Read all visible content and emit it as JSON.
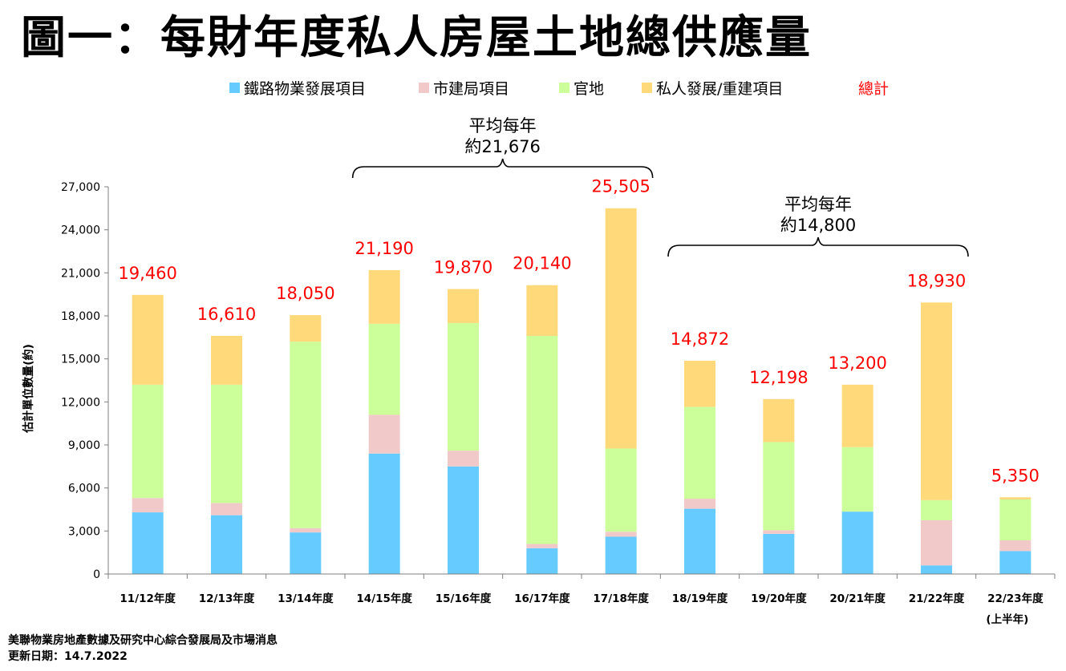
{
  "title": "圖一：每財年度私人房屋土地總供應量",
  "chart_data": {
    "type": "bar",
    "stacked": true,
    "title": "圖一：每財年度私人房屋土地總供應量",
    "ylabel": "估計單位數量(約)",
    "xlabel": "",
    "ylim": [
      0,
      27000
    ],
    "yticks": [
      0,
      3000,
      6000,
      9000,
      12000,
      15000,
      18000,
      21000,
      24000,
      27000
    ],
    "ytick_labels": [
      "0",
      "3,000",
      "6,000",
      "9,000",
      "12,000",
      "15,000",
      "18,000",
      "21,000",
      "24,000",
      "27,000"
    ],
    "categories": [
      "11/12年度",
      "12/13年度",
      "13/14年度",
      "14/15年度",
      "15/16年度",
      "16/17年度",
      "17/18年度",
      "18/19年度",
      "19/20年度",
      "20/21年度",
      "21/22年度",
      "22/23年度"
    ],
    "category_notes": [
      "",
      "",
      "",
      "",
      "",
      "",
      "",
      "",
      "",
      "",
      "",
      "(上半年)"
    ],
    "series": [
      {
        "name": "鐵路物業發展項目",
        "color": "#66ccff",
        "values": [
          4300,
          4100,
          2900,
          8400,
          7500,
          1800,
          2600,
          4550,
          2800,
          4350,
          600,
          1600
        ]
      },
      {
        "name": "市建局項目",
        "color": "#f2c9c9",
        "values": [
          1000,
          850,
          300,
          2700,
          1100,
          300,
          350,
          700,
          250,
          0,
          3150,
          750
        ]
      },
      {
        "name": "官地",
        "color": "#ccff99",
        "values": [
          7900,
          8250,
          13000,
          6350,
          8900,
          14500,
          5800,
          6400,
          6150,
          4500,
          1400,
          2850
        ]
      },
      {
        "name": "私人發展/重建項目",
        "color": "#ffd97a",
        "values": [
          6260,
          3410,
          1850,
          3740,
          2370,
          3540,
          16755,
          3222,
          2998,
          4350,
          13780,
          150
        ]
      }
    ],
    "totals": [
      19460,
      16610,
      18050,
      21190,
      19870,
      20140,
      25505,
      14872,
      12198,
      13200,
      18930,
      5350
    ],
    "total_labels": [
      "19,460",
      "16,610",
      "18,050",
      "21,190",
      "19,870",
      "20,140",
      "25,505",
      "14,872",
      "12,198",
      "13,200",
      "18,930",
      "5,350"
    ],
    "total_legend": {
      "name": "總計",
      "color": "#ff0000"
    },
    "annotations": [
      {
        "line1": "平均每年",
        "line2": "約21,676",
        "from_index": 3,
        "to_index": 6
      },
      {
        "line1": "平均每年",
        "line2": "約14,800",
        "from_index": 7,
        "to_index": 10
      }
    ],
    "legend_position": "top",
    "grid": false
  },
  "footer": {
    "source": "美聯物業房地產數據及研究中心綜合發展局及市場消息",
    "updated": "更新日期：14.7.2022"
  }
}
